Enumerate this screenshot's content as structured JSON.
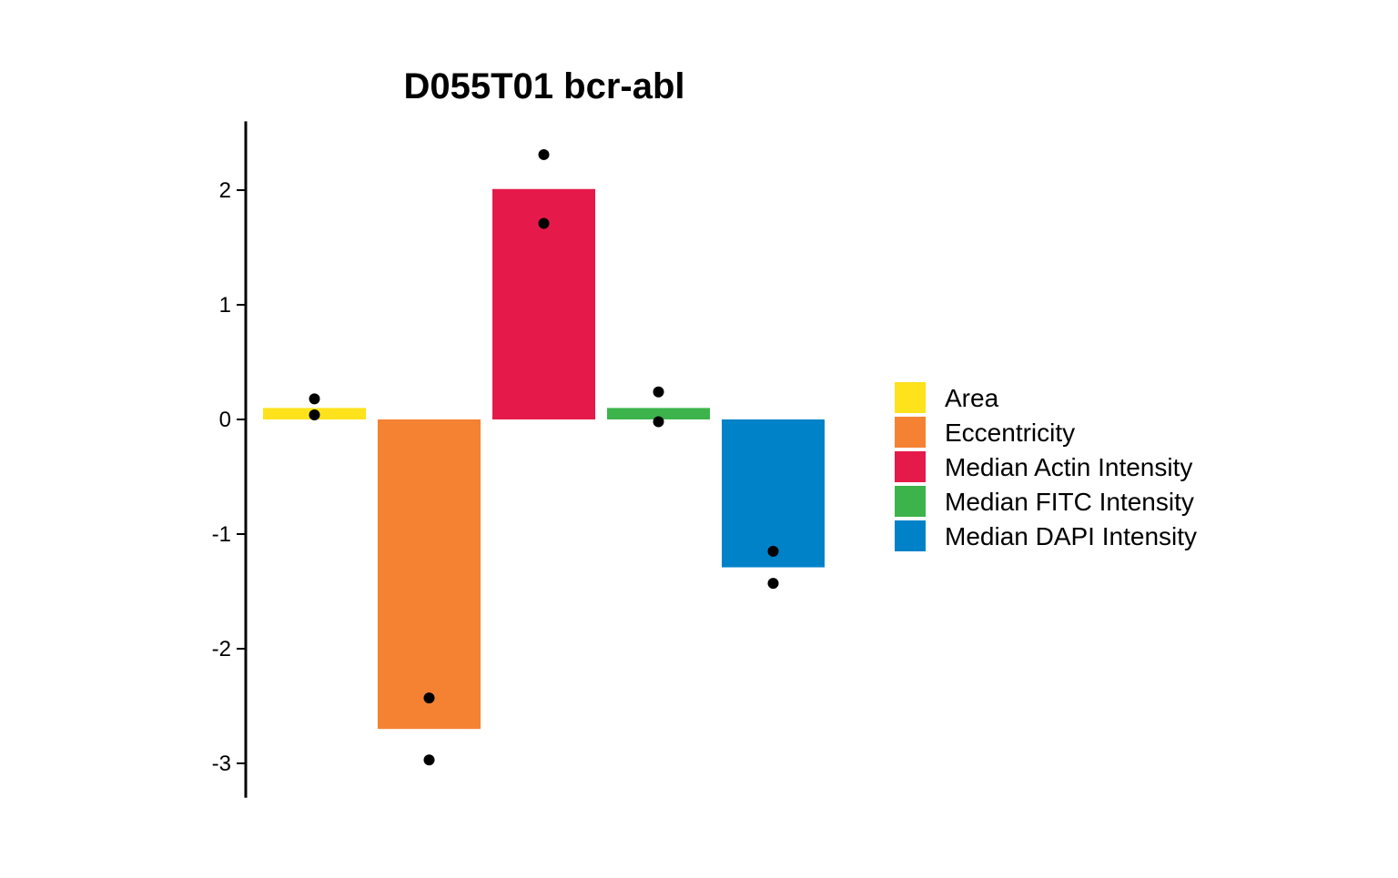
{
  "chart_data": {
    "type": "bar",
    "title": "D055T01 bcr-abl",
    "xlabel": "",
    "ylabel": "",
    "ylim": [
      -3.3,
      2.6
    ],
    "yticks": [
      -3,
      -2,
      -1,
      0,
      1,
      2
    ],
    "ytick_labels": [
      "-3",
      "-2",
      "-1",
      "0",
      "1",
      "2"
    ],
    "grid": false,
    "legend_position": "right",
    "categories": [
      "Area",
      "Eccentricity",
      "Median Actin Intensity",
      "Median FITC Intensity",
      "Median DAPI Intensity"
    ],
    "values": [
      0.1,
      -2.7,
      2.01,
      0.1,
      -1.29
    ],
    "points": [
      [
        0.18,
        0.04
      ],
      [
        -2.43,
        -2.97
      ],
      [
        2.31,
        1.71
      ],
      [
        0.24,
        -0.02
      ],
      [
        -1.15,
        -1.43
      ]
    ],
    "colors": [
      "#FDE21C",
      "#F58232",
      "#E51A4B",
      "#3CB44B",
      "#0082C8"
    ]
  }
}
